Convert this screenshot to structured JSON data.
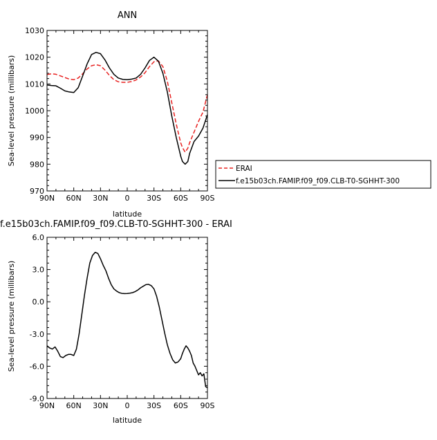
{
  "chart_data": [
    {
      "type": "line",
      "title": "ANN",
      "xlabel": "latitude",
      "ylabel": "Sea-level pressure (millibars)",
      "xlim": [
        90,
        -90
      ],
      "ylim": [
        970,
        1030
      ],
      "x_ticks": [
        90,
        60,
        30,
        0,
        -30,
        -60,
        -90
      ],
      "x_tick_labels": [
        "90N",
        "60N",
        "30N",
        "0",
        "30S",
        "60S",
        "90S"
      ],
      "y_ticks": [
        970,
        980,
        990,
        1000,
        1010,
        1020,
        1030
      ],
      "y_tick_labels": [
        "970",
        "980",
        "990",
        "1000",
        "1010",
        "1020",
        "1030"
      ],
      "grid": false,
      "legend_position": "right",
      "series": [
        {
          "name": "ERAI",
          "style": "dashed",
          "color": "#e8201f",
          "x": [
            90,
            85,
            80,
            75,
            70,
            65,
            60,
            55,
            50,
            45,
            40,
            35,
            30,
            25,
            20,
            15,
            10,
            5,
            0,
            -5,
            -10,
            -15,
            -20,
            -25,
            -30,
            -35,
            -40,
            -45,
            -50,
            -55,
            -60,
            -62,
            -65,
            -68,
            -70,
            -75,
            -80,
            -85,
            -90
          ],
          "y": [
            1013.5,
            1013.8,
            1013.6,
            1013.0,
            1012.4,
            1011.8,
            1011.6,
            1012.2,
            1013.8,
            1015.6,
            1016.8,
            1017.2,
            1016.8,
            1015.2,
            1013.2,
            1011.6,
            1010.8,
            1010.6,
            1010.6,
            1010.9,
            1011.5,
            1012.6,
            1014.2,
            1016.5,
            1018.3,
            1018.6,
            1016.5,
            1011.0,
            1003.0,
            995.0,
            988.0,
            986.2,
            984.5,
            986.0,
            988.0,
            992.0,
            996.0,
            999.5,
            1006.0
          ]
        },
        {
          "name": "f.e15b03ch.FAMIP.f09_f09.CLB-T0-SGHHT-300",
          "style": "solid",
          "color": "#000000",
          "x": [
            90,
            85,
            80,
            75,
            70,
            65,
            60,
            55,
            50,
            45,
            40,
            35,
            30,
            25,
            20,
            15,
            10,
            5,
            0,
            -5,
            -10,
            -15,
            -20,
            -25,
            -30,
            -35,
            -40,
            -45,
            -50,
            -55,
            -60,
            -62,
            -65,
            -68,
            -70,
            -75,
            -80,
            -85,
            -90
          ],
          "y": [
            1009.6,
            1009.4,
            1009.3,
            1008.4,
            1007.4,
            1007.0,
            1006.8,
            1008.6,
            1013.0,
            1017.5,
            1021.0,
            1021.8,
            1021.3,
            1019.0,
            1016.0,
            1013.6,
            1012.2,
            1011.7,
            1011.6,
            1011.8,
            1012.2,
            1013.6,
            1016.0,
            1018.8,
            1020.0,
            1018.5,
            1014.0,
            1007.0,
            998.0,
            990.0,
            983.0,
            981.0,
            980.0,
            981.0,
            984.0,
            988.5,
            990.5,
            993.5,
            998.5
          ]
        }
      ]
    },
    {
      "type": "line",
      "title": "f.e15b03ch.FAMIP.f09_f09.CLB-T0-SGHHT-300 - ERAI",
      "xlabel": "latitude",
      "ylabel": "Sea-level pressure (millibars)",
      "xlim": [
        90,
        -90
      ],
      "ylim": [
        -9,
        6
      ],
      "x_ticks": [
        90,
        60,
        30,
        0,
        -30,
        -60,
        -90
      ],
      "x_tick_labels": [
        "90N",
        "60N",
        "30N",
        "0",
        "30S",
        "60S",
        "90S"
      ],
      "y_ticks": [
        -9,
        -6,
        -3,
        0,
        3,
        6
      ],
      "y_tick_labels": [
        "-9.0",
        "-6.0",
        "-3.0",
        "0.0",
        "3.0",
        "6.0"
      ],
      "grid": false,
      "series": [
        {
          "name": "",
          "style": "solid",
          "color": "#000000",
          "x": [
            90,
            87,
            84,
            81,
            78,
            75,
            72,
            69,
            66,
            63,
            60,
            57,
            54,
            51,
            48,
            45,
            42,
            39,
            36,
            33,
            30,
            27,
            24,
            21,
            18,
            15,
            12,
            9,
            6,
            3,
            0,
            -3,
            -6,
            -9,
            -12,
            -15,
            -18,
            -21,
            -24,
            -27,
            -30,
            -33,
            -36,
            -39,
            -42,
            -45,
            -48,
            -51,
            -54,
            -57,
            -60,
            -62,
            -64,
            -66,
            -68,
            -70,
            -72,
            -74,
            -76,
            -78,
            -80,
            -82,
            -84,
            -86,
            -88,
            -90
          ],
          "y": [
            -4.1,
            -4.3,
            -4.4,
            -4.2,
            -4.6,
            -5.1,
            -5.2,
            -5.0,
            -4.9,
            -4.9,
            -5.0,
            -4.4,
            -3.0,
            -1.2,
            0.6,
            2.2,
            3.6,
            4.3,
            4.6,
            4.5,
            4.0,
            3.4,
            2.9,
            2.2,
            1.6,
            1.2,
            1.0,
            0.85,
            0.78,
            0.76,
            0.77,
            0.8,
            0.85,
            0.95,
            1.1,
            1.3,
            1.45,
            1.6,
            1.62,
            1.5,
            1.2,
            0.5,
            -0.5,
            -1.7,
            -2.9,
            -4.0,
            -4.8,
            -5.4,
            -5.7,
            -5.6,
            -5.3,
            -4.8,
            -4.4,
            -4.1,
            -4.3,
            -4.6,
            -5.0,
            -5.7,
            -6.0,
            -6.4,
            -6.8,
            -6.6,
            -6.9,
            -6.7,
            -7.9,
            -8.0
          ]
        }
      ]
    }
  ]
}
